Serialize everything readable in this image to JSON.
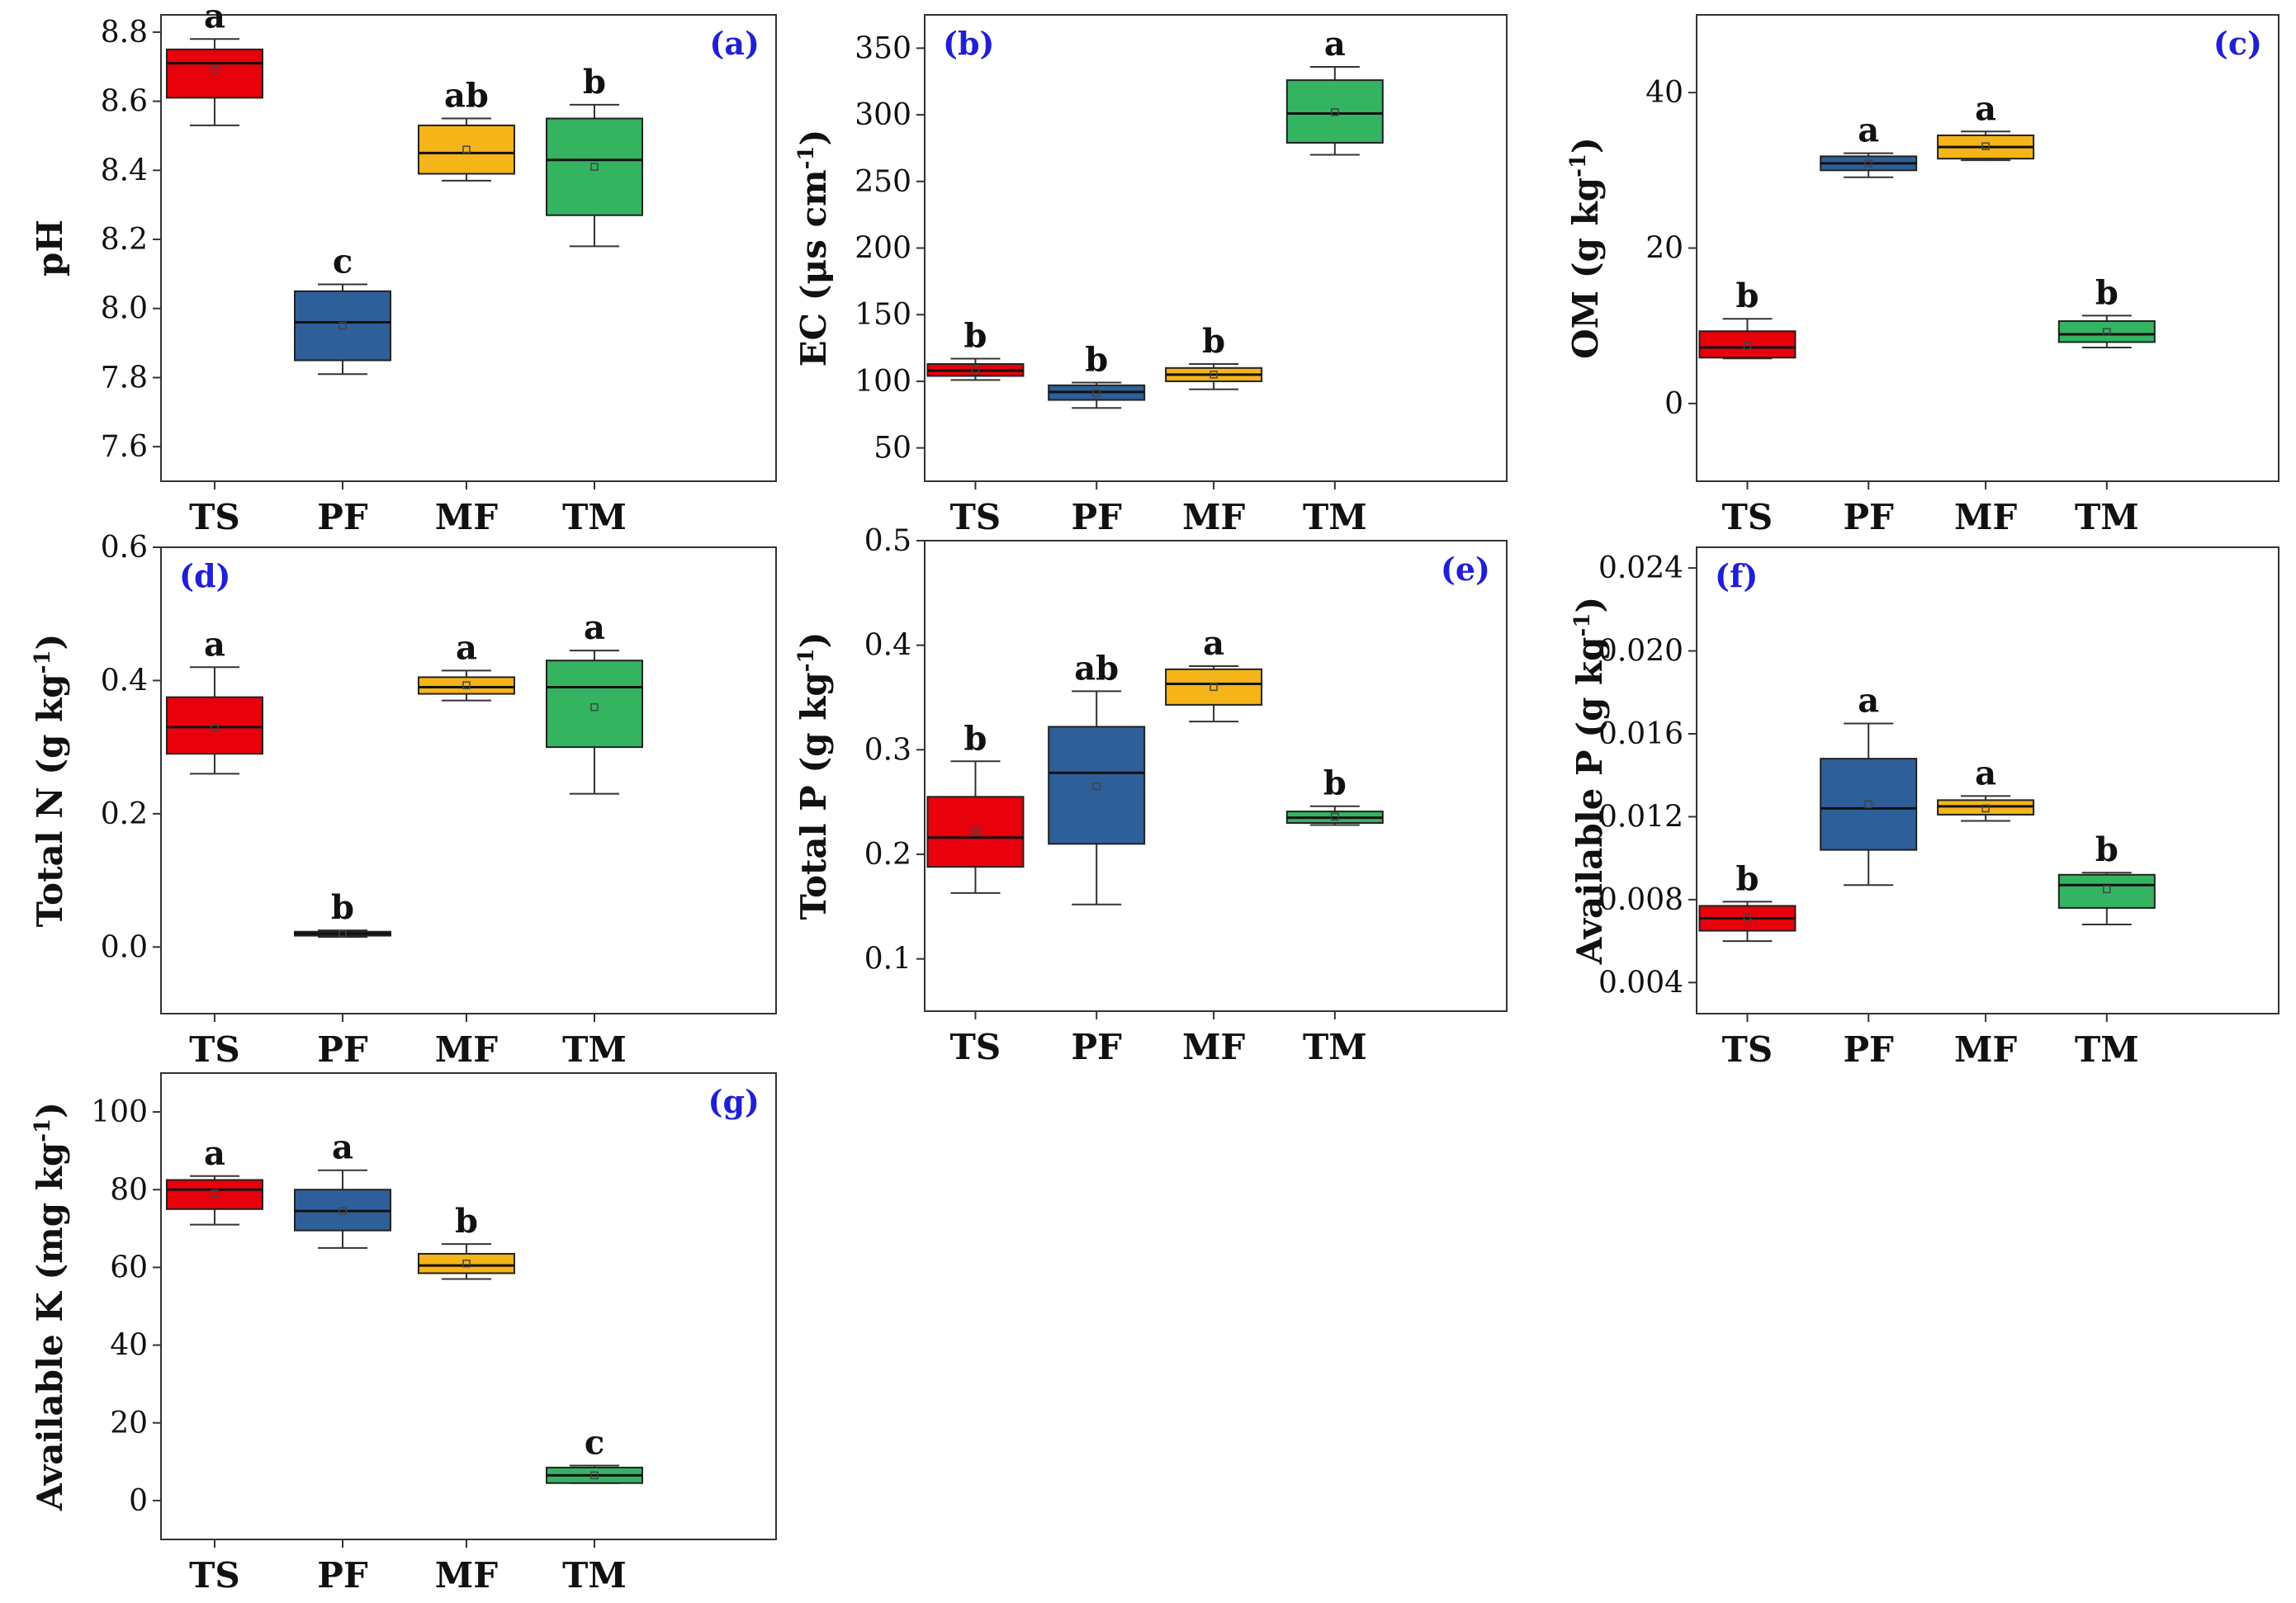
{
  "colors": {
    "TS": "#e8000b",
    "PF": "#2f5f98",
    "MF": "#f5b418",
    "TM": "#34b361",
    "panel_tag": "#1f1fd6"
  },
  "chart_data": [
    {
      "type": "box",
      "panel": "(a)",
      "ylabel": "pH",
      "ylabel_sup": "",
      "ylabel_tail": "",
      "ylim": [
        7.5,
        8.85
      ],
      "yticks": [
        "7.6",
        "7.8",
        "8.0",
        "8.2",
        "8.4",
        "8.6",
        "8.8"
      ],
      "tag_pos": "top-right",
      "categories": [
        "TS",
        "PF",
        "MF",
        "TM"
      ],
      "boxes": [
        {
          "min": 8.53,
          "q1": 8.61,
          "median": 8.71,
          "q3": 8.75,
          "max": 8.78,
          "mean": 8.69,
          "sig": "a"
        },
        {
          "min": 7.81,
          "q1": 7.85,
          "median": 7.96,
          "q3": 8.05,
          "max": 8.07,
          "mean": 7.95,
          "sig": "c"
        },
        {
          "min": 8.37,
          "q1": 8.39,
          "median": 8.45,
          "q3": 8.53,
          "max": 8.55,
          "mean": 8.46,
          "sig": "ab"
        },
        {
          "min": 8.18,
          "q1": 8.27,
          "median": 8.43,
          "q3": 8.55,
          "max": 8.59,
          "mean": 8.41,
          "sig": "b"
        }
      ]
    },
    {
      "type": "box",
      "panel": "(b)",
      "ylabel": "EC (μs cm",
      "ylabel_sup": "-1",
      "ylabel_tail": ")",
      "ylim": [
        25,
        375
      ],
      "yticks": [
        "50",
        "100",
        "150",
        "200",
        "250",
        "300",
        "350"
      ],
      "tag_pos": "top-left",
      "categories": [
        "TS",
        "PF",
        "MF",
        "TM"
      ],
      "boxes": [
        {
          "min": 101,
          "q1": 104,
          "median": 108,
          "q3": 113,
          "max": 117,
          "mean": 108,
          "sig": "b"
        },
        {
          "min": 80,
          "q1": 86,
          "median": 92,
          "q3": 97,
          "max": 99,
          "mean": 91,
          "sig": "b"
        },
        {
          "min": 94,
          "q1": 100,
          "median": 105,
          "q3": 110,
          "max": 113,
          "mean": 105,
          "sig": "b"
        },
        {
          "min": 270,
          "q1": 279,
          "median": 301,
          "q3": 326,
          "max": 336,
          "mean": 302,
          "sig": "a"
        }
      ]
    },
    {
      "type": "box",
      "panel": "(c)",
      "ylabel": "OM (g kg",
      "ylabel_sup": "-1",
      "ylabel_tail": ")",
      "ylim": [
        -10,
        50
      ],
      "yticks": [
        "0",
        "20",
        "40"
      ],
      "tag_pos": "top-right",
      "categories": [
        "TS",
        "PF",
        "MF",
        "TM"
      ],
      "boxes": [
        {
          "min": 5.8,
          "q1": 5.9,
          "median": 7.2,
          "q3": 9.3,
          "max": 10.9,
          "mean": 7.4,
          "sig": "b"
        },
        {
          "min": 29.1,
          "q1": 30.0,
          "median": 30.9,
          "q3": 31.8,
          "max": 32.2,
          "mean": 30.9,
          "sig": "a"
        },
        {
          "min": 31.3,
          "q1": 31.5,
          "median": 33.0,
          "q3": 34.5,
          "max": 35.0,
          "mean": 33.1,
          "sig": "a"
        },
        {
          "min": 7.2,
          "q1": 7.9,
          "median": 8.9,
          "q3": 10.6,
          "max": 11.3,
          "mean": 9.2,
          "sig": "b"
        }
      ]
    },
    {
      "type": "box",
      "panel": "(d)",
      "ylabel": "Total N (g kg",
      "ylabel_sup": "-1",
      "ylabel_tail": ")",
      "ylim": [
        -0.1,
        0.6
      ],
      "yticks": [
        "0.0",
        "0.2",
        "0.4",
        "0.6"
      ],
      "tag_pos": "top-left",
      "categories": [
        "TS",
        "PF",
        "MF",
        "TM"
      ],
      "boxes": [
        {
          "min": 0.26,
          "q1": 0.29,
          "median": 0.33,
          "q3": 0.375,
          "max": 0.42,
          "mean": 0.33,
          "sig": "a"
        },
        {
          "min": 0.015,
          "q1": 0.017,
          "median": 0.02,
          "q3": 0.023,
          "max": 0.025,
          "mean": 0.02,
          "sig": "b"
        },
        {
          "min": 0.37,
          "q1": 0.38,
          "median": 0.39,
          "q3": 0.405,
          "max": 0.415,
          "mean": 0.393,
          "sig": "a"
        },
        {
          "min": 0.23,
          "q1": 0.3,
          "median": 0.39,
          "q3": 0.43,
          "max": 0.445,
          "mean": 0.36,
          "sig": "a"
        }
      ]
    },
    {
      "type": "box",
      "panel": "(e)",
      "ylabel": "Total P (g kg",
      "ylabel_sup": "-1",
      "ylabel_tail": ")",
      "ylim": [
        0.05,
        0.5
      ],
      "yticks": [
        "0.1",
        "0.2",
        "0.3",
        "0.4",
        "0.5"
      ],
      "tag_pos": "top-right",
      "categories": [
        "TS",
        "PF",
        "MF",
        "TM"
      ],
      "boxes": [
        {
          "min": 0.163,
          "q1": 0.188,
          "median": 0.216,
          "q3": 0.255,
          "max": 0.289,
          "mean": 0.222,
          "sig": "b"
        },
        {
          "min": 0.152,
          "q1": 0.21,
          "median": 0.278,
          "q3": 0.322,
          "max": 0.356,
          "mean": 0.265,
          "sig": "ab"
        },
        {
          "min": 0.327,
          "q1": 0.343,
          "median": 0.363,
          "q3": 0.377,
          "max": 0.38,
          "mean": 0.36,
          "sig": "a"
        },
        {
          "min": 0.228,
          "q1": 0.23,
          "median": 0.235,
          "q3": 0.241,
          "max": 0.246,
          "mean": 0.236,
          "sig": "b"
        }
      ]
    },
    {
      "type": "box",
      "panel": "(f)",
      "ylabel": "Available P (g kg",
      "ylabel_sup": "-1",
      "ylabel_tail": ")",
      "ylim": [
        0.0025,
        0.025
      ],
      "yticks": [
        "0.004",
        "0.008",
        "0.012",
        "0.016",
        "0.020",
        "0.024"
      ],
      "tag_pos": "top-left",
      "categories": [
        "TS",
        "PF",
        "MF",
        "TM"
      ],
      "boxes": [
        {
          "min": 0.006,
          "q1": 0.0065,
          "median": 0.0071,
          "q3": 0.0077,
          "max": 0.0079,
          "mean": 0.0071,
          "sig": "b"
        },
        {
          "min": 0.0087,
          "q1": 0.0104,
          "median": 0.0124,
          "q3": 0.0148,
          "max": 0.0165,
          "mean": 0.0126,
          "sig": "a"
        },
        {
          "min": 0.0118,
          "q1": 0.0121,
          "median": 0.0125,
          "q3": 0.0128,
          "max": 0.013,
          "mean": 0.0124,
          "sig": "a"
        },
        {
          "min": 0.0068,
          "q1": 0.0076,
          "median": 0.0087,
          "q3": 0.0092,
          "max": 0.0093,
          "mean": 0.0085,
          "sig": "b"
        }
      ]
    },
    {
      "type": "box",
      "panel": "(g)",
      "ylabel": "Available K (mg kg",
      "ylabel_sup": "-1",
      "ylabel_tail": ")",
      "ylim": [
        -10,
        110
      ],
      "yticks": [
        "0",
        "20",
        "40",
        "60",
        "80",
        "100"
      ],
      "tag_pos": "top-right",
      "categories": [
        "TS",
        "PF",
        "MF",
        "TM"
      ],
      "boxes": [
        {
          "min": 71,
          "q1": 75,
          "median": 80,
          "q3": 82.5,
          "max": 83.5,
          "mean": 79,
          "sig": "a"
        },
        {
          "min": 65,
          "q1": 69.5,
          "median": 74.5,
          "q3": 80,
          "max": 85,
          "mean": 74.5,
          "sig": "a"
        },
        {
          "min": 57,
          "q1": 58.5,
          "median": 60.5,
          "q3": 63.5,
          "max": 66,
          "mean": 61,
          "sig": "b"
        },
        {
          "min": 4.5,
          "q1": 4.5,
          "median": 6.5,
          "q3": 8.5,
          "max": 9,
          "mean": 6.5,
          "sig": "c"
        }
      ]
    }
  ]
}
